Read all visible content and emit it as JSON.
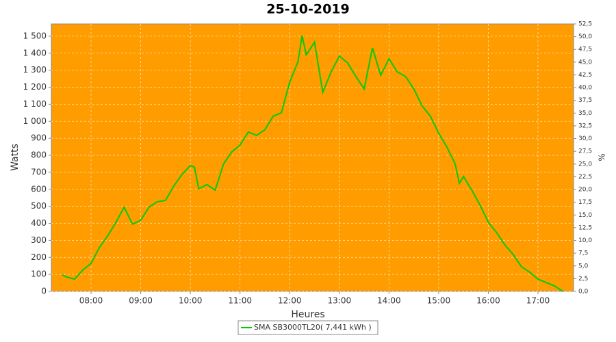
{
  "chart_data": {
    "type": "line",
    "title": "25-10-2019",
    "xlabel": "Heures",
    "ylabel": "Watts",
    "y2label": "%",
    "background": "#ff9c00",
    "grid": true,
    "legend": "bottom",
    "x": [
      "07:25",
      "07:30",
      "07:40",
      "07:50",
      "08:00",
      "08:10",
      "08:20",
      "08:30",
      "08:40",
      "08:50",
      "09:00",
      "09:10",
      "09:20",
      "09:30",
      "09:40",
      "09:50",
      "10:00",
      "10:05",
      "10:10",
      "10:20",
      "10:30",
      "10:40",
      "10:50",
      "11:00",
      "11:10",
      "11:20",
      "11:30",
      "11:40",
      "11:50",
      "12:00",
      "12:10",
      "12:15",
      "12:20",
      "12:30",
      "12:40",
      "12:50",
      "13:00",
      "13:10",
      "13:20",
      "13:30",
      "13:40",
      "13:50",
      "14:00",
      "14:10",
      "14:20",
      "14:30",
      "14:40",
      "14:50",
      "15:00",
      "15:10",
      "15:20",
      "15:25",
      "15:30",
      "15:40",
      "15:50",
      "16:00",
      "16:10",
      "16:20",
      "16:30",
      "16:40",
      "16:50",
      "17:00",
      "17:10",
      "17:20",
      "17:30"
    ],
    "series": [
      {
        "name": "SMA SB3000TL20( 7,441 kWh )",
        "color": "#00cc00",
        "values": [
          97,
          85,
          72,
          125,
          165,
          257,
          326,
          405,
          495,
          395,
          418,
          495,
          527,
          535,
          620,
          688,
          740,
          730,
          603,
          628,
          595,
          748,
          820,
          860,
          937,
          917,
          950,
          1030,
          1050,
          1230,
          1350,
          1504,
          1390,
          1465,
          1170,
          1290,
          1383,
          1343,
          1263,
          1190,
          1431,
          1270,
          1367,
          1290,
          1263,
          1190,
          1090,
          1030,
          930,
          848,
          748,
          635,
          675,
          595,
          507,
          406,
          346,
          273,
          217,
          145,
          113,
          72,
          52,
          32,
          0
        ]
      }
    ],
    "xlim": [
      "07:12",
      "17:43"
    ],
    "xticks": [
      "08:00",
      "09:00",
      "10:00",
      "11:00",
      "12:00",
      "13:00",
      "14:00",
      "15:00",
      "16:00",
      "17:00"
    ],
    "ylim": [
      0,
      1572
    ],
    "yticks": [
      0,
      100,
      200,
      300,
      400,
      500,
      600,
      700,
      800,
      900,
      {
        "value": 1000,
        "label": "1 000"
      },
      {
        "value": 1100,
        "label": "1 100"
      },
      {
        "value": 1200,
        "label": "1 200"
      },
      {
        "value": 1300,
        "label": "1 300"
      },
      {
        "value": 1400,
        "label": "1 400"
      },
      {
        "value": 1500,
        "label": "1 500"
      }
    ],
    "y2lim": [
      0,
      52.5
    ],
    "y2ticks": [
      {
        "value": 0,
        "label": "0,0"
      },
      {
        "value": 2.5,
        "label": "2,5"
      },
      {
        "value": 5,
        "label": "5,0"
      },
      {
        "value": 7.5,
        "label": "7,5"
      },
      {
        "value": 10,
        "label": "10,0"
      },
      {
        "value": 12.5,
        "label": "12,5"
      },
      {
        "value": 15,
        "label": "15,0"
      },
      {
        "value": 17.5,
        "label": "17,5"
      },
      {
        "value": 20,
        "label": "20,0"
      },
      {
        "value": 22.5,
        "label": "22,5"
      },
      {
        "value": 25,
        "label": "25,0"
      },
      {
        "value": 27.5,
        "label": "27,5"
      },
      {
        "value": 30,
        "label": "30,0"
      },
      {
        "value": 32.5,
        "label": "32,5"
      },
      {
        "value": 35,
        "label": "35,0"
      },
      {
        "value": 37.5,
        "label": "37,5"
      },
      {
        "value": 40,
        "label": "40,0"
      },
      {
        "value": 42.5,
        "label": "42,5"
      },
      {
        "value": 45,
        "label": "45,0"
      },
      {
        "value": 47.5,
        "label": "47,5"
      },
      {
        "value": 50,
        "label": "50,0"
      },
      {
        "value": 52.5,
        "label": "52,5"
      }
    ]
  }
}
